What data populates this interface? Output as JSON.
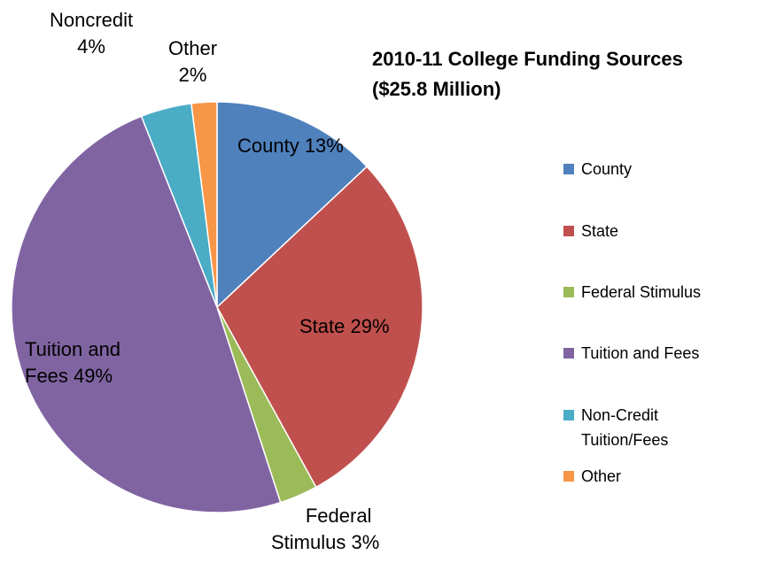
{
  "chart_data": {
    "type": "pie",
    "title": "2010-11 College Funding Sources",
    "subtitle": "($25.8 Million)",
    "slices": [
      {
        "name": "County",
        "value": 13,
        "color": "#4F81BD",
        "label_line1": "County 13%",
        "label_line2": ""
      },
      {
        "name": "State",
        "value": 29,
        "color": "#C0504D",
        "label_line1": "State 29%",
        "label_line2": ""
      },
      {
        "name": "Federal Stimulus",
        "value": 3,
        "color": "#9BBB59",
        "label_line1": "Federal",
        "label_line2": "Stimulus 3%"
      },
      {
        "name": "Tuition and Fees",
        "value": 49,
        "color": "#8064A2",
        "label_line1": "Tuition and",
        "label_line2": "Fees 49%"
      },
      {
        "name": "Non-Credit Tuition/Fees",
        "value": 4,
        "color": "#4BACC6",
        "label_line1": "Noncredit",
        "label_line2": "4%"
      },
      {
        "name": "Other",
        "value": 2,
        "color": "#F79646",
        "label_line1": "Other",
        "label_line2": "2%"
      }
    ],
    "legend": {
      "position": "right",
      "entries": [
        {
          "line1": "County",
          "line2": "",
          "color": "#4F81BD"
        },
        {
          "line1": "State",
          "line2": "",
          "color": "#C0504D"
        },
        {
          "line1": "Federal Stimulus",
          "line2": "",
          "color": "#9BBB59"
        },
        {
          "line1": "Tuition and Fees",
          "line2": "",
          "color": "#8064A2"
        },
        {
          "line1": "Non-Credit",
          "line2": "Tuition/Fees",
          "color": "#4BACC6"
        },
        {
          "line1": "Other",
          "line2": "",
          "color": "#F79646"
        }
      ]
    }
  }
}
